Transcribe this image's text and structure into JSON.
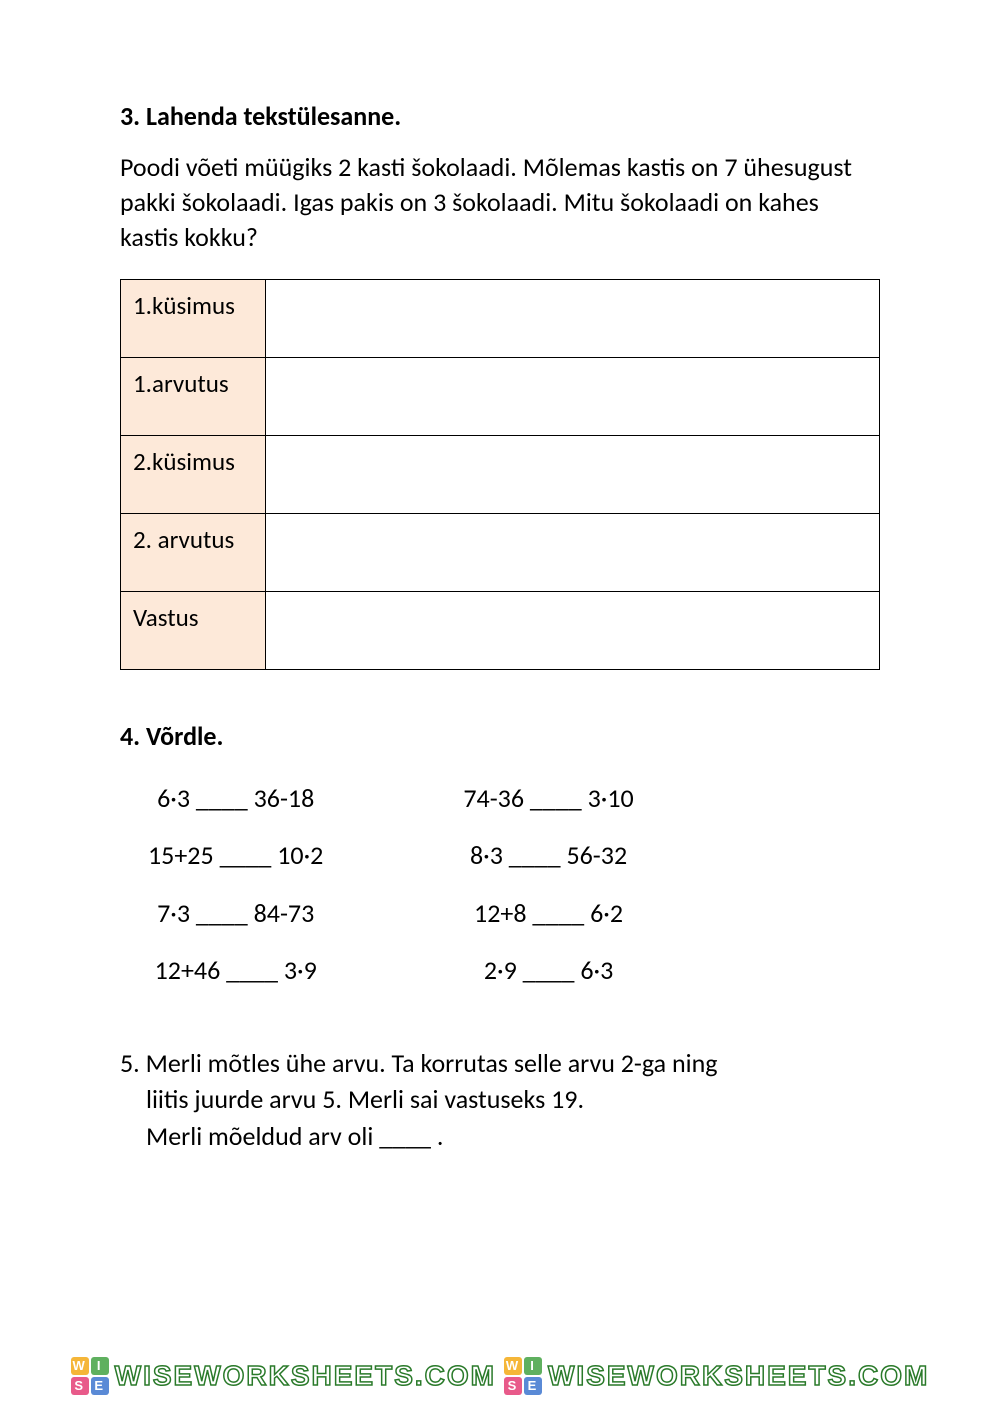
{
  "page": {
    "background_color": "#ffffff",
    "text_color": "#000000",
    "font_family": "Calibri",
    "body_fontsize_pt": 20
  },
  "q3": {
    "heading": "3. Lahenda tekstülesanne.",
    "text": "Poodi võeti müügiks 2 kasti šokolaadi. Mõlemas kastis on 7 ühesugust pakki šokolaadi. Igas pakis on 3 šokolaadi. Mitu šokolaadi on kahes kastis kokku?",
    "table": {
      "label_bg_color": "#fde9d9",
      "border_color": "#000000",
      "rows": [
        {
          "label": "1.küsimus",
          "value": ""
        },
        {
          "label": "1.arvutus",
          "value": ""
        },
        {
          "label": "2.küsimus",
          "value": ""
        },
        {
          "label": "2. arvutus",
          "value": ""
        },
        {
          "label": "Vastus",
          "value": ""
        }
      ]
    }
  },
  "q4": {
    "heading": "4. Võrdle.",
    "blank": "____",
    "left": [
      {
        "a": "6·3",
        "b": "36-18"
      },
      {
        "a": "15+25",
        "b": "10·2"
      },
      {
        "a": "7·3",
        "b": "84-73"
      },
      {
        "a": "12+46",
        "b": "3·9"
      }
    ],
    "right": [
      {
        "a": "74-36",
        "b": "3·10"
      },
      {
        "a": "8·3",
        "b": "56-32"
      },
      {
        "a": "12+8",
        "b": "6·2"
      },
      {
        "a": "2·9",
        "b": "6·3"
      }
    ]
  },
  "q5": {
    "prefix": "5. ",
    "line1": "Merli mõtles ühe arvu. Ta korrutas selle arvu 2-ga ning",
    "line2": "liitis juurde arvu 5. Merli sai vastuseks 19.",
    "line3": "Merli mõeldud arv oli ____ ."
  },
  "watermark": {
    "text": "WISEWORKSHEETS.COM",
    "stroke_color": "#2a7a2a",
    "logo_letters": [
      "W",
      "I",
      "S",
      "E"
    ],
    "logo_colors": [
      "#f5b638",
      "#5fb05f",
      "#e85a8a",
      "#5a8ad6"
    ]
  }
}
